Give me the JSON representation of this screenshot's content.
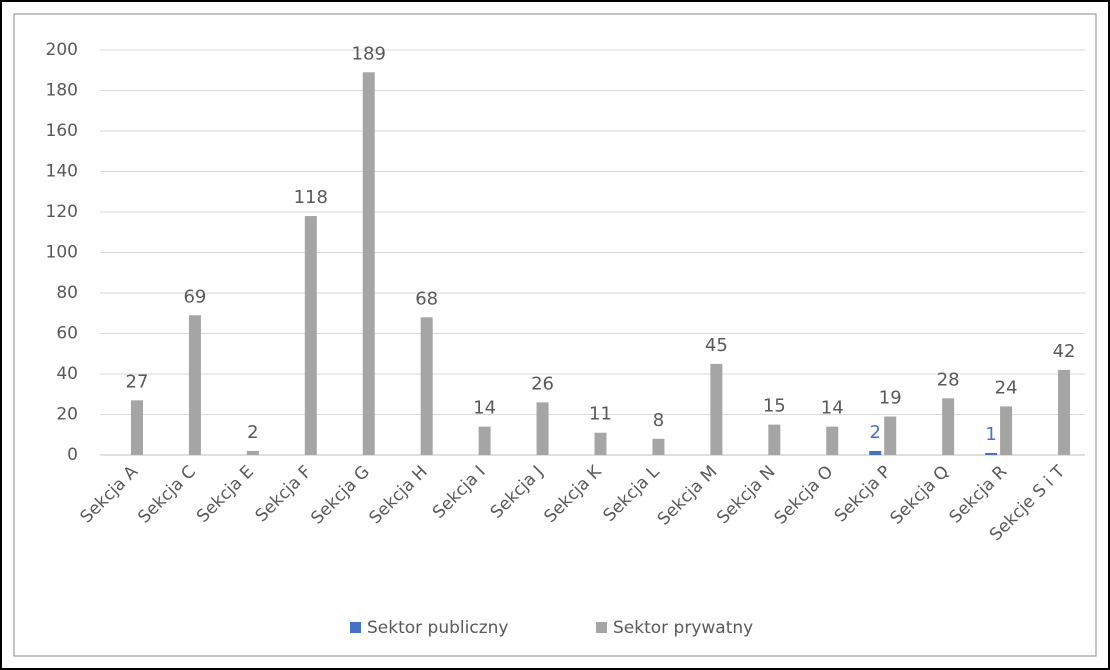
{
  "chart_data": {
    "type": "bar",
    "categories": [
      "Sekcja A",
      "Sekcja C",
      "Sekcja E",
      "Sekcja F",
      "Sekcja G",
      "Sekcja H",
      "Sekcja I",
      "Sekcja J",
      "Sekcja K",
      "Sekcja L",
      "Sekcja M",
      "Sekcja N",
      "Sekcja O",
      "Sekcja P",
      "Sekcja Q",
      "Sekcja R",
      "Sekcje S i T"
    ],
    "series": [
      {
        "name": "Sektor publiczny",
        "color": "#4472c4",
        "values": [
          null,
          null,
          null,
          null,
          null,
          null,
          null,
          null,
          null,
          null,
          null,
          null,
          null,
          2,
          null,
          1,
          null
        ]
      },
      {
        "name": "Sektor prywatny",
        "color": "#a5a5a5",
        "values": [
          27,
          69,
          2,
          118,
          189,
          68,
          14,
          26,
          11,
          8,
          45,
          15,
          14,
          19,
          28,
          24,
          42
        ]
      }
    ],
    "ylim": [
      0,
      200
    ],
    "yticks": [
      0,
      20,
      40,
      60,
      80,
      100,
      120,
      140,
      160,
      180,
      200
    ],
    "grid": true,
    "legend": "bottom"
  }
}
